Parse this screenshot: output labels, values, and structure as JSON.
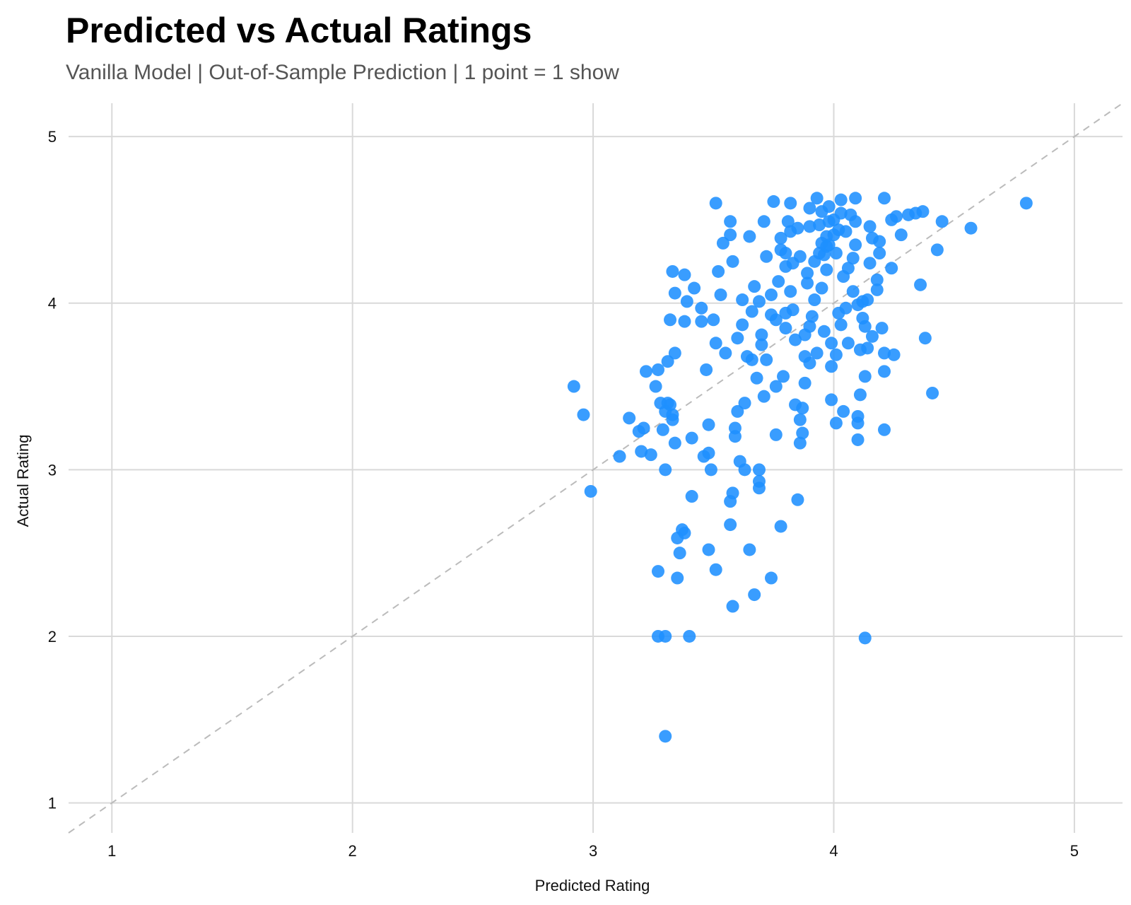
{
  "chart_data": {
    "type": "scatter",
    "title": "Predicted vs Actual Ratings",
    "subtitle": "Vanilla Model | Out-of-Sample Prediction | 1 point = 1 show",
    "xlabel": "Predicted Rating",
    "ylabel": "Actual Rating",
    "xlim": [
      0.82,
      5.2
    ],
    "ylim": [
      0.82,
      5.2
    ],
    "xticks": [
      1,
      2,
      3,
      4,
      5
    ],
    "yticks": [
      1,
      2,
      3,
      4,
      5
    ],
    "grid": true,
    "reference_line": "y = x",
    "point_color": "#1E8FFF",
    "reference_color": "#BBBBBB",
    "grid_color": "#D9D9D9",
    "points": [
      [
        4.8,
        4.6
      ],
      [
        4.57,
        4.45
      ],
      [
        4.45,
        4.49
      ],
      [
        4.43,
        4.32
      ],
      [
        4.41,
        3.46
      ],
      [
        4.38,
        3.79
      ],
      [
        4.36,
        4.11
      ],
      [
        4.37,
        4.55
      ],
      [
        4.34,
        4.54
      ],
      [
        4.31,
        4.53
      ],
      [
        4.28,
        4.41
      ],
      [
        4.26,
        4.52
      ],
      [
        4.24,
        4.5
      ],
      [
        4.24,
        4.21
      ],
      [
        4.25,
        3.69
      ],
      [
        4.21,
        4.63
      ],
      [
        4.21,
        3.24
      ],
      [
        4.21,
        3.59
      ],
      [
        4.21,
        3.7
      ],
      [
        4.2,
        3.85
      ],
      [
        4.19,
        4.3
      ],
      [
        4.18,
        4.08
      ],
      [
        4.18,
        4.14
      ],
      [
        4.16,
        4.39
      ],
      [
        4.15,
        4.46
      ],
      [
        4.15,
        4.24
      ],
      [
        4.14,
        4.02
      ],
      [
        4.14,
        3.73
      ],
      [
        4.13,
        3.86
      ],
      [
        4.13,
        3.56
      ],
      [
        4.12,
        3.91
      ],
      [
        4.11,
        3.72
      ],
      [
        4.1,
        3.99
      ],
      [
        4.09,
        4.63
      ],
      [
        4.09,
        4.49
      ],
      [
        4.09,
        4.35
      ],
      [
        4.1,
        3.18
      ],
      [
        4.1,
        3.28
      ],
      [
        4.11,
        3.45
      ],
      [
        4.1,
        3.32
      ],
      [
        4.08,
        4.07
      ],
      [
        4.06,
        4.21
      ],
      [
        4.06,
        3.76
      ],
      [
        4.05,
        3.97
      ],
      [
        4.04,
        4.16
      ],
      [
        4.04,
        3.35
      ],
      [
        4.03,
        4.62
      ],
      [
        4.03,
        4.54
      ],
      [
        4.02,
        4.44
      ],
      [
        4.01,
        4.3
      ],
      [
        4.01,
        3.69
      ],
      [
        4.01,
        3.28
      ],
      [
        3.99,
        3.42
      ],
      [
        3.99,
        3.76
      ],
      [
        3.99,
        3.62
      ],
      [
        3.98,
        4.58
      ],
      [
        3.98,
        4.49
      ],
      [
        3.97,
        4.4
      ],
      [
        3.97,
        4.34
      ],
      [
        3.96,
        4.29
      ],
      [
        3.96,
        3.83
      ],
      [
        3.95,
        4.09
      ],
      [
        3.94,
        4.47
      ],
      [
        3.93,
        4.63
      ],
      [
        3.92,
        4.25
      ],
      [
        3.92,
        4.02
      ],
      [
        3.91,
        3.92
      ],
      [
        3.9,
        3.64
      ],
      [
        3.9,
        4.57
      ],
      [
        3.9,
        4.46
      ],
      [
        3.89,
        4.12
      ],
      [
        3.88,
        3.81
      ],
      [
        3.88,
        3.68
      ],
      [
        3.88,
        3.52
      ],
      [
        3.87,
        3.37
      ],
      [
        3.87,
        3.22
      ],
      [
        3.86,
        3.16
      ],
      [
        3.86,
        3.3
      ],
      [
        3.85,
        2.82
      ],
      [
        3.84,
        3.39
      ],
      [
        3.84,
        3.78
      ],
      [
        3.83,
        3.96
      ],
      [
        3.83,
        4.24
      ],
      [
        3.82,
        4.43
      ],
      [
        3.82,
        4.6
      ],
      [
        3.81,
        4.49
      ],
      [
        3.8,
        4.3
      ],
      [
        3.8,
        3.85
      ],
      [
        3.79,
        3.56
      ],
      [
        3.78,
        2.66
      ],
      [
        3.78,
        4.39
      ],
      [
        3.77,
        4.13
      ],
      [
        3.76,
        3.5
      ],
      [
        3.76,
        3.21
      ],
      [
        3.75,
        4.61
      ],
      [
        3.74,
        3.93
      ],
      [
        3.74,
        2.35
      ],
      [
        3.72,
        4.28
      ],
      [
        3.72,
        3.66
      ],
      [
        3.71,
        4.49
      ],
      [
        3.7,
        3.81
      ],
      [
        3.69,
        4.01
      ],
      [
        3.69,
        2.89
      ],
      [
        3.69,
        3.0
      ],
      [
        3.69,
        2.93
      ],
      [
        3.68,
        3.55
      ],
      [
        3.67,
        4.1
      ],
      [
        3.67,
        2.25
      ],
      [
        3.66,
        3.66
      ],
      [
        3.65,
        2.52
      ],
      [
        3.65,
        4.4
      ],
      [
        3.63,
        3.0
      ],
      [
        3.63,
        3.4
      ],
      [
        3.62,
        3.87
      ],
      [
        3.62,
        4.02
      ],
      [
        3.61,
        3.05
      ],
      [
        3.6,
        3.79
      ],
      [
        3.6,
        3.35
      ],
      [
        3.59,
        3.25
      ],
      [
        3.59,
        3.2
      ],
      [
        3.58,
        2.86
      ],
      [
        3.58,
        2.18
      ],
      [
        3.58,
        4.25
      ],
      [
        3.57,
        4.41
      ],
      [
        3.57,
        4.49
      ],
      [
        3.57,
        2.81
      ],
      [
        3.57,
        2.67
      ],
      [
        3.55,
        3.7
      ],
      [
        3.54,
        4.36
      ],
      [
        3.53,
        4.05
      ],
      [
        3.52,
        4.19
      ],
      [
        3.51,
        2.4
      ],
      [
        3.51,
        3.76
      ],
      [
        3.51,
        4.6
      ],
      [
        3.5,
        3.9
      ],
      [
        3.49,
        3.0
      ],
      [
        3.48,
        3.1
      ],
      [
        3.48,
        3.27
      ],
      [
        3.48,
        2.52
      ],
      [
        3.47,
        3.6
      ],
      [
        3.46,
        3.08
      ],
      [
        3.45,
        3.89
      ],
      [
        3.45,
        3.97
      ],
      [
        3.42,
        4.09
      ],
      [
        3.41,
        2.84
      ],
      [
        3.41,
        3.19
      ],
      [
        3.4,
        2.0
      ],
      [
        3.39,
        4.01
      ],
      [
        3.38,
        3.89
      ],
      [
        3.38,
        4.17
      ],
      [
        3.38,
        2.62
      ],
      [
        3.37,
        2.64
      ],
      [
        3.36,
        2.5
      ],
      [
        3.35,
        2.59
      ],
      [
        3.35,
        2.35
      ],
      [
        3.34,
        4.06
      ],
      [
        3.34,
        3.16
      ],
      [
        3.34,
        3.7
      ],
      [
        3.33,
        4.19
      ],
      [
        3.33,
        3.3
      ],
      [
        3.33,
        3.33
      ],
      [
        3.32,
        3.9
      ],
      [
        3.32,
        3.39
      ],
      [
        3.31,
        3.4
      ],
      [
        3.31,
        3.65
      ],
      [
        3.3,
        3.35
      ],
      [
        3.3,
        2.0
      ],
      [
        3.3,
        3.0
      ],
      [
        3.3,
        1.4
      ],
      [
        3.29,
        3.24
      ],
      [
        3.28,
        3.4
      ],
      [
        3.27,
        2.39
      ],
      [
        3.27,
        2.0
      ],
      [
        3.27,
        3.6
      ],
      [
        3.26,
        3.5
      ],
      [
        3.24,
        3.09
      ],
      [
        3.22,
        3.59
      ],
      [
        3.21,
        3.25
      ],
      [
        3.2,
        3.11
      ],
      [
        3.19,
        3.23
      ],
      [
        3.15,
        3.31
      ],
      [
        3.11,
        3.08
      ],
      [
        2.99,
        2.87
      ],
      [
        2.96,
        3.33
      ],
      [
        2.92,
        3.5
      ],
      [
        4.13,
        1.99
      ],
      [
        4.19,
        4.37
      ],
      [
        4.07,
        4.53
      ],
      [
        4.0,
        4.5
      ],
      [
        3.95,
        4.55
      ],
      [
        4.05,
        4.43
      ],
      [
        3.98,
        4.35
      ],
      [
        3.86,
        4.28
      ],
      [
        3.8,
        4.22
      ],
      [
        3.74,
        4.05
      ],
      [
        3.66,
        3.95
      ],
      [
        3.7,
        3.75
      ],
      [
        3.93,
        3.7
      ],
      [
        4.03,
        3.87
      ],
      [
        4.12,
        4.01
      ],
      [
        3.85,
        4.45
      ],
      [
        3.78,
        4.32
      ],
      [
        3.89,
        4.18
      ],
      [
        3.95,
        4.36
      ],
      [
        4.0,
        4.41
      ],
      [
        3.94,
        4.3
      ],
      [
        4.08,
        4.27
      ],
      [
        3.82,
        4.07
      ],
      [
        3.76,
        3.9
      ],
      [
        3.64,
        3.68
      ],
      [
        3.71,
        3.44
      ],
      [
        3.8,
        3.94
      ],
      [
        3.9,
        3.86
      ],
      [
        4.02,
        3.94
      ],
      [
        4.16,
        3.8
      ],
      [
        3.97,
        4.2
      ]
    ]
  }
}
